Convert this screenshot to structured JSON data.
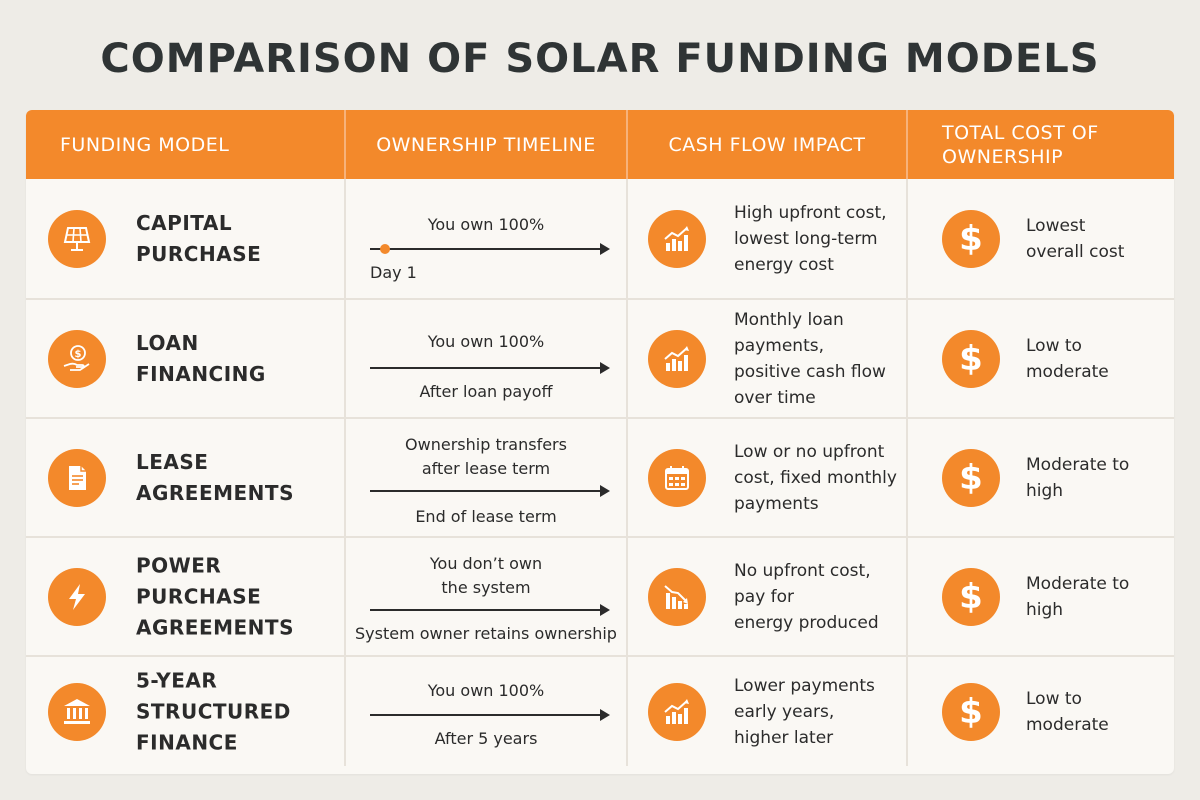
{
  "title": "COMPARISON OF SOLAR FUNDING MODELS",
  "headers": {
    "funding_model": "FUNDING MODEL",
    "ownership_timeline": "OWNERSHIP TIMELINE",
    "cash_flow_impact": "CASH FLOW IMPACT",
    "total_cost": "TOTAL COST OF\nOWNERSHIP"
  },
  "colors": {
    "accent": "#f3892b",
    "background": "#eeece7",
    "table_background": "#faf8f4",
    "text": "#2b2b2b"
  },
  "rows": [
    {
      "model": "CAPITAL\nPURCHASE",
      "model_icon": "solar-panel-icon",
      "timeline_top": "You own 100%",
      "timeline_bottom": "Day 1",
      "cash_flow_icon": "rising-chart-icon",
      "cash_flow": "High upfront cost,\nlowest long-term\nenergy cost",
      "cost_icon": "dollar-icon",
      "cost_symbol": "$",
      "cost": "Lowest\noverall cost"
    },
    {
      "model": "LOAN\nFINANCING",
      "model_icon": "hand-coin-icon",
      "timeline_top": "You own 100%",
      "timeline_bottom": "After loan payoff",
      "cash_flow_icon": "rising-chart-icon",
      "cash_flow": "Monthly loan\npayments,\npositive cash flow\nover time",
      "cost_icon": "dollar-icon",
      "cost_symbol": "$",
      "cost": "Low to\nmoderate"
    },
    {
      "model": "LEASE\nAGREEMENTS",
      "model_icon": "document-icon",
      "timeline_top": "Ownership transfers\nafter lease term",
      "timeline_bottom": "End of lease term",
      "cash_flow_icon": "calendar-icon",
      "cash_flow": "Low or no upfront\ncost, fixed monthly\npayments",
      "cost_icon": "dollar-icon",
      "cost_symbol": "$",
      "cost": "Moderate to\nhigh"
    },
    {
      "model": "POWER PURCHASE\nAGREEMENTS",
      "model_icon": "lightning-icon",
      "timeline_top": "You don’t own\nthe system",
      "timeline_bottom": "System owner retains ownership",
      "cash_flow_icon": "falling-chart-icon",
      "cash_flow": "No upfront cost,\npay for\nenergy produced",
      "cost_icon": "dollar-icon",
      "cost_symbol": "$",
      "cost": "Moderate to\nhigh"
    },
    {
      "model": "5-YEAR STRUCTURED\nFINANCE",
      "model_icon": "bank-icon",
      "timeline_top": "You own 100%",
      "timeline_bottom": "After 5 years",
      "cash_flow_icon": "rising-chart-icon",
      "cash_flow": "Lower payments\nearly years,\nhigher later",
      "cost_icon": "dollar-icon",
      "cost_symbol": "$",
      "cost": "Low to\nmoderate"
    }
  ]
}
